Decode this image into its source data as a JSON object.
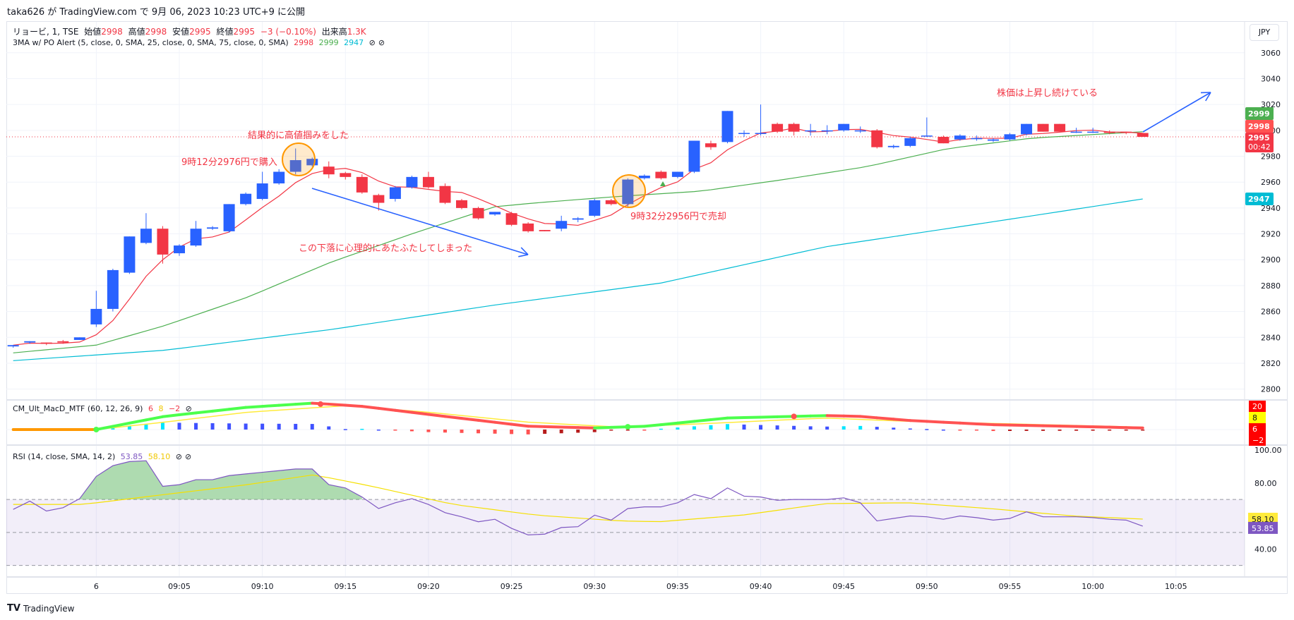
{
  "header": {
    "published": "taka626 が TradingView.com で 9月 06, 2023 10:23 UTC+9 に公開"
  },
  "symbol": {
    "name": "リョービ, 1, TSE",
    "open_label": "始値",
    "open": "2998",
    "high_label": "高値",
    "high": "2998",
    "low_label": "安値",
    "low": "2995",
    "close_label": "終値",
    "close": "2995",
    "change": "−3 (−0.10%)",
    "volume_label": "出来高",
    "volume": "1.3K"
  },
  "ma_indicator": {
    "name": "3MA w/ PO Alert (5, close, 0, SMA, 25, close, 0, SMA, 75, close, 0, SMA)",
    "v1": "2998",
    "v2": "2999",
    "v3": "2947"
  },
  "macd_indicator": {
    "name": "CM_Ult_MacD_MTF (60, 12, 26, 9)",
    "v1": "6",
    "v2": "8",
    "v3": "−2"
  },
  "rsi_indicator": {
    "name": "RSI (14, close, SMA, 14, 2)",
    "v1": "53.85",
    "v2": "58.10"
  },
  "currency_button": "JPY",
  "price_axis": [
    "3060",
    "3040",
    "3020",
    "3000",
    "2980",
    "2960",
    "2940",
    "2920",
    "2900",
    "2880",
    "2860",
    "2840",
    "2820",
    "2800"
  ],
  "price_badges": {
    "sma25": "2999",
    "sma5": "2998",
    "last": "2995",
    "countdown": "00:42",
    "sma75": "2947"
  },
  "macd_badges": [
    "20",
    "8",
    "6",
    "−2"
  ],
  "rsi_axis": [
    "100.00",
    "80.00",
    "40.00"
  ],
  "rsi_badges": {
    "ma": "58.10",
    "rsi": "53.85"
  },
  "time_axis": [
    "6",
    "09:05",
    "09:10",
    "09:15",
    "09:20",
    "09:25",
    "09:30",
    "09:35",
    "09:40",
    "09:45",
    "09:50",
    "09:55",
    "10:00",
    "10:05"
  ],
  "annotations": {
    "top": "結果的に高値掴みをした",
    "buy": "9時12分2976円で購入",
    "drop": "この下落に心理的にあたふたしてしまった",
    "sell": "9時32分2956円で売却",
    "rise": "株価は上昇し続けている"
  },
  "footer": {
    "brand": "TradingView"
  },
  "colors": {
    "up": "#2962ff",
    "down": "#f23645",
    "sma5": "#f23645",
    "sma25": "#4caf50",
    "sma75": "#00bcd4",
    "rsi": "#7e57c2",
    "rsi_ma": "#f5e000",
    "annot": "#f23645",
    "arrow": "#2962ff"
  },
  "chart_data": {
    "type": "candlestick",
    "first_index_time": "08:55",
    "price_ylim": [
      2790,
      3070
    ],
    "candles": [
      [
        2833,
        2834,
        2832,
        2834
      ],
      [
        2836,
        2837,
        2835,
        2837
      ],
      [
        2836,
        2836,
        2834,
        2835
      ],
      [
        2837,
        2838,
        2835,
        2836
      ],
      [
        2838,
        2840,
        2838,
        2840
      ],
      [
        2850,
        2876,
        2848,
        2862
      ],
      [
        2862,
        2893,
        2860,
        2892
      ],
      [
        2890,
        2918,
        2889,
        2918
      ],
      [
        2913,
        2936,
        2912,
        2924
      ],
      [
        2924,
        2926,
        2897,
        2904
      ],
      [
        2905,
        2912,
        2903,
        2911
      ],
      [
        2911,
        2930,
        2910,
        2924
      ],
      [
        2924,
        2926,
        2923,
        2925
      ],
      [
        2922,
        2943,
        2921,
        2943
      ],
      [
        2943,
        2952,
        2942,
        2951
      ],
      [
        2947,
        2968,
        2946,
        2959
      ],
      [
        2959,
        2970,
        2958,
        2968
      ],
      [
        2968,
        2986,
        2966,
        2977
      ],
      [
        2973,
        2979,
        2972,
        2978
      ],
      [
        2972,
        2976,
        2963,
        2966
      ],
      [
        2967,
        2968,
        2962,
        2964
      ],
      [
        2964,
        2966,
        2951,
        2952
      ],
      [
        2950,
        2951,
        2938,
        2944
      ],
      [
        2947,
        2957,
        2945,
        2956
      ],
      [
        2956,
        2965,
        2955,
        2964
      ],
      [
        2964,
        2968,
        2955,
        2956
      ],
      [
        2957,
        2959,
        2943,
        2944
      ],
      [
        2946,
        2947,
        2939,
        2940
      ],
      [
        2940,
        2941,
        2931,
        2932
      ],
      [
        2935,
        2937,
        2934,
        2937
      ],
      [
        2936,
        2937,
        2926,
        2927
      ],
      [
        2928,
        2929,
        2921,
        2922
      ],
      [
        2923,
        2923,
        2922,
        2922
      ],
      [
        2924,
        2934,
        2922,
        2930
      ],
      [
        2931,
        2933,
        2929,
        2932
      ],
      [
        2934,
        2947,
        2933,
        2946
      ],
      [
        2946,
        2947,
        2942,
        2943
      ],
      [
        2943,
        2963,
        2941,
        2962
      ],
      [
        2963,
        2966,
        2962,
        2965
      ],
      [
        2968,
        2969,
        2962,
        2963
      ],
      [
        2964,
        2968,
        2963,
        2968
      ],
      [
        2968,
        2992,
        2967,
        2992
      ],
      [
        2990,
        2992,
        2985,
        2987
      ],
      [
        2991,
        3015,
        2990,
        3015
      ],
      [
        2998,
        3000,
        2995,
        2998
      ],
      [
        2998,
        3020,
        2996,
        2998
      ],
      [
        3005,
        3006,
        2998,
        2999
      ],
      [
        3005,
        3006,
        2996,
        2999
      ],
      [
        3000,
        3005,
        2996,
        3000
      ],
      [
        3000,
        3004,
        2997,
        3000
      ],
      [
        3000,
        3005,
        2999,
        3005
      ],
      [
        3000,
        3003,
        2998,
        3000
      ],
      [
        3000,
        3001,
        2986,
        2987
      ],
      [
        2987,
        2989,
        2986,
        2988
      ],
      [
        2988,
        2995,
        2987,
        2994
      ],
      [
        2996,
        3010,
        2995,
        2996
      ],
      [
        2995,
        2996,
        2990,
        2990
      ],
      [
        2993,
        2997,
        2992,
        2996
      ],
      [
        2994,
        2996,
        2992,
        2994
      ],
      [
        2992,
        2994,
        2991,
        2993
      ],
      [
        2993,
        2998,
        2992,
        2997
      ],
      [
        2997,
        3005,
        2996,
        3005
      ],
      [
        3005,
        3005,
        2999,
        2999
      ],
      [
        3005,
        3005,
        2999,
        2999
      ],
      [
        2999,
        3002,
        2998,
        2999
      ],
      [
        2999,
        3002,
        2998,
        2999
      ],
      [
        2999,
        3000,
        2997,
        2998
      ],
      [
        2999,
        2999,
        2997,
        2998
      ],
      [
        2998,
        2998,
        2995,
        2995
      ]
    ],
    "sma25": [
      [
        0,
        2828
      ],
      [
        5,
        2834
      ],
      [
        9.1,
        2849
      ],
      [
        14.1,
        2871
      ],
      [
        19.1,
        2898
      ],
      [
        24,
        2920
      ],
      [
        29,
        2941
      ],
      [
        31.5,
        2944
      ],
      [
        36.5,
        2949
      ],
      [
        41.4,
        2953
      ],
      [
        46.4,
        2962
      ],
      [
        51.4,
        2972
      ],
      [
        56.3,
        2986
      ],
      [
        61.3,
        2994
      ],
      [
        68,
        2999
      ]
    ],
    "sma75": [
      [
        0,
        2822
      ],
      [
        9.1,
        2830
      ],
      [
        19.1,
        2846
      ],
      [
        29,
        2865
      ],
      [
        39,
        2882
      ],
      [
        48.9,
        2910
      ],
      [
        58.8,
        2929
      ],
      [
        68,
        2947
      ]
    ],
    "macd": [
      [
        0,
        0
      ],
      [
        5,
        0
      ],
      [
        9.1,
        11.4
      ],
      [
        14.1,
        19.3
      ],
      [
        18.1,
        22.9
      ],
      [
        21.1,
        20
      ],
      [
        26,
        11.4
      ],
      [
        31,
        2.9
      ],
      [
        35,
        1.4
      ],
      [
        38.1,
        2.9
      ],
      [
        43,
        10
      ],
      [
        49,
        12.1
      ],
      [
        51,
        11.4
      ],
      [
        53.9,
        7.9
      ],
      [
        58.8,
        4.3
      ],
      [
        68,
        1.4
      ]
    ],
    "macd_signal": [
      [
        0,
        0
      ],
      [
        5,
        0
      ],
      [
        9.1,
        6.4
      ],
      [
        14.1,
        15
      ],
      [
        20,
        20.7
      ],
      [
        25,
        15
      ],
      [
        31,
        6.4
      ],
      [
        36.5,
        2.1
      ],
      [
        41.4,
        5
      ],
      [
        48.9,
        10
      ],
      [
        53.9,
        7.1
      ],
      [
        68,
        2.1
      ]
    ],
    "rsi": [
      64,
      69,
      63,
      65,
      70.5,
      84,
      90.5,
      93,
      93.5,
      78,
      79,
      82,
      82,
      84.5,
      85.5,
      86.5,
      87.5,
      88.5,
      88.5,
      79,
      77,
      71.5,
      64.5,
      68,
      70.5,
      67,
      62,
      59.5,
      56.5,
      58,
      52.5,
      48.5,
      49,
      53,
      53.5,
      60.5,
      57.5,
      64.5,
      65.5,
      65.5,
      68,
      73,
      70.5,
      77,
      72,
      71.5,
      69.5,
      70,
      70,
      70,
      71,
      68,
      57,
      58.5,
      60,
      59.5,
      58,
      60,
      59,
      57.5,
      58.5,
      62.5,
      59.5,
      59.5,
      59.5,
      59,
      58,
      57.5,
      53.85
    ],
    "rsi_ma": [
      [
        0,
        67
      ],
      [
        4.2,
        67
      ],
      [
        9.1,
        73
      ],
      [
        14.1,
        79
      ],
      [
        18.1,
        85
      ],
      [
        21.6,
        78
      ],
      [
        26.5,
        67
      ],
      [
        31.5,
        60.5
      ],
      [
        36.5,
        57
      ],
      [
        38.9,
        56.5
      ],
      [
        43.9,
        60.5
      ],
      [
        48.9,
        67.5
      ],
      [
        53.9,
        68
      ],
      [
        58.8,
        64.5
      ],
      [
        63.8,
        60
      ],
      [
        68,
        58.1
      ]
    ],
    "rsi_bands": [
      70,
      50,
      30
    ]
  }
}
